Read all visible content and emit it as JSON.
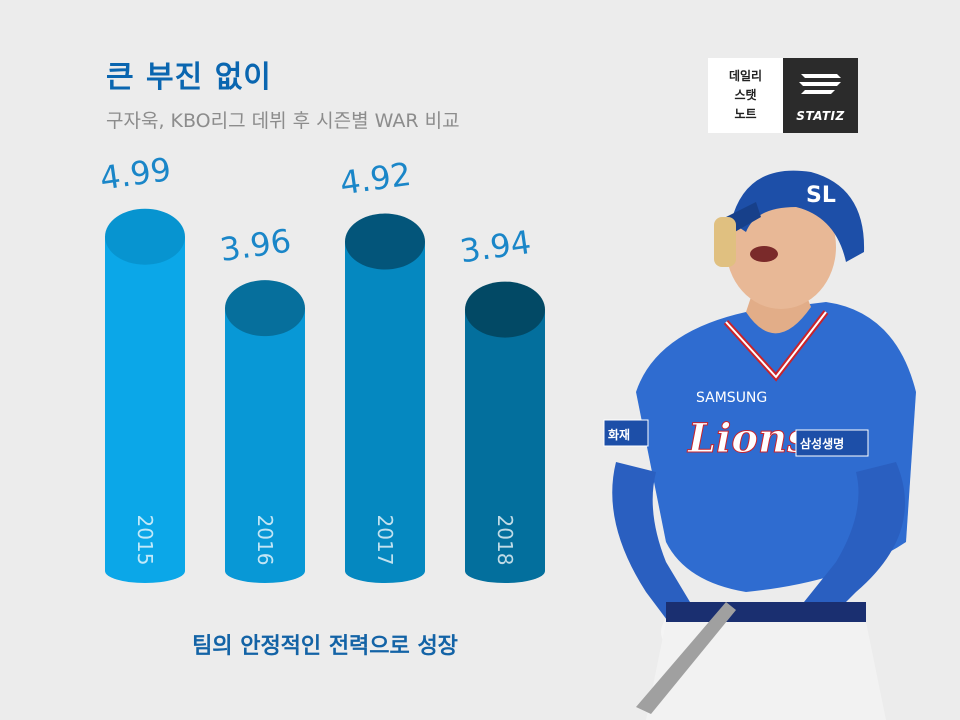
{
  "header": {
    "title": "큰 부진 없이",
    "subtitle": "구자욱, KBO리그 데뷔 후 시즌별 WAR 비교"
  },
  "logo": {
    "line1": "데일리",
    "line2": "스탯",
    "line3": "노트",
    "brand": "STATIZ"
  },
  "chart_data": {
    "type": "bar",
    "categories": [
      "2015",
      "2016",
      "2017",
      "2018"
    ],
    "values": [
      4.99,
      3.96,
      4.92,
      3.94
    ],
    "data_labels": [
      "4.99",
      "3.96",
      "4.92",
      "3.94"
    ],
    "colors": [
      "#0ba7e8",
      "#0898d6",
      "#0588c0",
      "#036f9d"
    ],
    "cap_colors": [
      "#0794d0",
      "#066f9c",
      "#03557a",
      "#024965"
    ],
    "label_color": "#1a86c8",
    "title": "",
    "xlabel": "",
    "ylabel": "",
    "grid": false,
    "legend": "none"
  },
  "footer": {
    "tagline": "팀의 안정적인 전력으로 성장"
  },
  "player": {
    "jersey_text": "SAMSUNG",
    "jersey_logo": "Lions",
    "patch_left": "화재",
    "patch_right": "삼성생명",
    "helmet_logo": "SL",
    "colors": {
      "jersey": "#2f6cd0",
      "trim": "#c8242c",
      "skin": "#e8b896",
      "pants": "#f2f2f2"
    }
  }
}
